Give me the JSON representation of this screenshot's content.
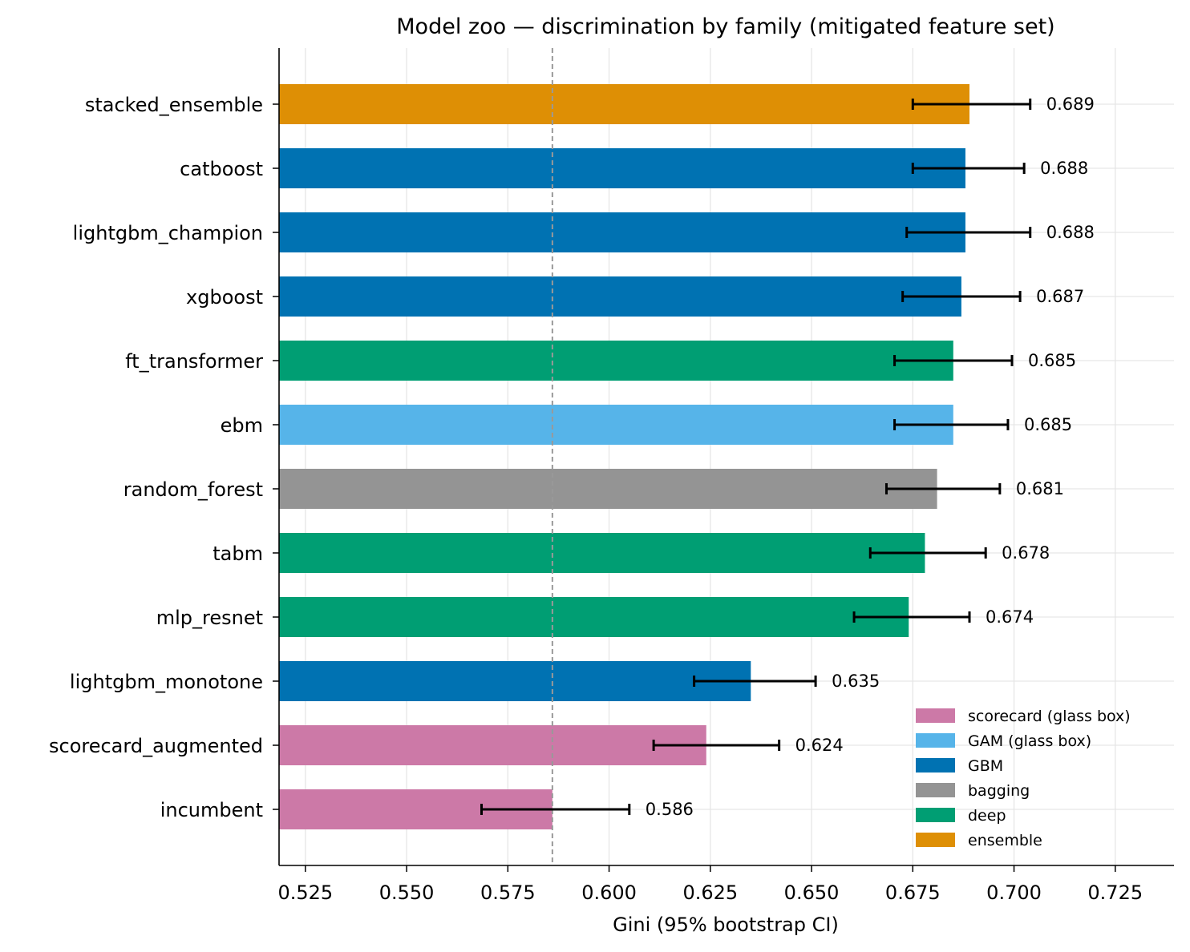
{
  "chart_data": {
    "type": "bar",
    "orientation": "horizontal",
    "title": "Model zoo — discrimination by family (mitigated feature set)",
    "xlabel": "Gini (95% bootstrap CI)",
    "ylabel": "",
    "xlim": [
      0.5185,
      0.7395
    ],
    "xticks": [
      0.525,
      0.55,
      0.575,
      0.6,
      0.625,
      0.65,
      0.675,
      0.7,
      0.725
    ],
    "xtick_labels": [
      "0.525",
      "0.550",
      "0.575",
      "0.600",
      "0.625",
      "0.650",
      "0.675",
      "0.700",
      "0.725"
    ],
    "grid": true,
    "reference_line": {
      "x": 0.586,
      "style": "dashed",
      "color": "#999999"
    },
    "legend_position": "lower-right",
    "families": [
      {
        "name": "scorecard (glass box)",
        "color": "#CC79A7"
      },
      {
        "name": "GAM (glass box)",
        "color": "#56B4E9"
      },
      {
        "name": "GBM",
        "color": "#0072B2"
      },
      {
        "name": "bagging",
        "color": "#949494"
      },
      {
        "name": "deep",
        "color": "#009E73"
      },
      {
        "name": "ensemble",
        "color": "#DE8F05"
      }
    ],
    "bars": [
      {
        "model": "stacked_ensemble",
        "family": "ensemble",
        "gini": 0.689,
        "label": "0.689",
        "ci": [
          0.675,
          0.704
        ]
      },
      {
        "model": "catboost",
        "family": "GBM",
        "gini": 0.688,
        "label": "0.688",
        "ci": [
          0.675,
          0.7025
        ]
      },
      {
        "model": "lightgbm_champion",
        "family": "GBM",
        "gini": 0.688,
        "label": "0.688",
        "ci": [
          0.6735,
          0.704
        ]
      },
      {
        "model": "xgboost",
        "family": "GBM",
        "gini": 0.687,
        "label": "0.687",
        "ci": [
          0.6725,
          0.7015
        ]
      },
      {
        "model": "ft_transformer",
        "family": "deep",
        "gini": 0.685,
        "label": "0.685",
        "ci": [
          0.6705,
          0.6995
        ]
      },
      {
        "model": "ebm",
        "family": "GAM (glass box)",
        "gini": 0.685,
        "label": "0.685",
        "ci": [
          0.6705,
          0.6985
        ]
      },
      {
        "model": "random_forest",
        "family": "bagging",
        "gini": 0.681,
        "label": "0.681",
        "ci": [
          0.6685,
          0.6965
        ]
      },
      {
        "model": "tabm",
        "family": "deep",
        "gini": 0.678,
        "label": "0.678",
        "ci": [
          0.6645,
          0.693
        ]
      },
      {
        "model": "mlp_resnet",
        "family": "deep",
        "gini": 0.674,
        "label": "0.674",
        "ci": [
          0.6605,
          0.689
        ]
      },
      {
        "model": "lightgbm_monotone",
        "family": "GBM",
        "gini": 0.635,
        "label": "0.635",
        "ci": [
          0.621,
          0.651
        ]
      },
      {
        "model": "scorecard_augmented",
        "family": "scorecard (glass box)",
        "gini": 0.624,
        "label": "0.624",
        "ci": [
          0.611,
          0.642
        ]
      },
      {
        "model": "incumbent",
        "family": "scorecard (glass box)",
        "gini": 0.586,
        "label": "0.586",
        "ci": [
          0.5685,
          0.605
        ]
      }
    ]
  }
}
